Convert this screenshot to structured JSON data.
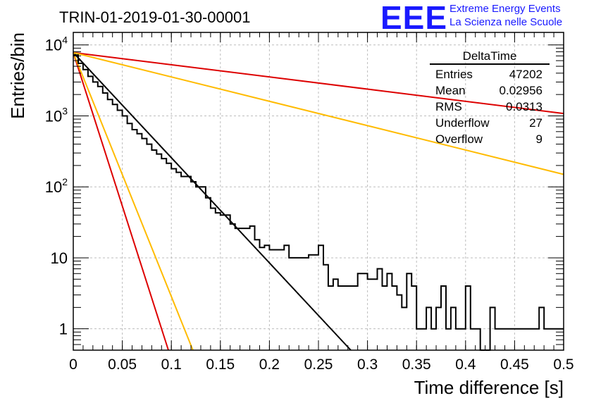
{
  "header": {
    "run_title": "TRIN-01-2019-01-30-00001",
    "logo_text": "EEE",
    "logo_line1": "Extreme Energy Events",
    "logo_line2": "La Scienza nelle Scuole",
    "logo_color": "#1a1aff"
  },
  "stats_box": {
    "title": "DeltaTime",
    "rows": [
      {
        "label": "Entries",
        "value": "47202"
      },
      {
        "label": "Mean",
        "value": "0.02956"
      },
      {
        "label": "RMS",
        "value": "0.0313"
      },
      {
        "label": "Underflow",
        "value": "27"
      },
      {
        "label": "Overflow",
        "value": "9"
      }
    ]
  },
  "chart_data": {
    "type": "line",
    "title": "",
    "xlabel": "Time difference [s]",
    "ylabel": "Entries/bin",
    "xlim": [
      0,
      0.5
    ],
    "ylim": [
      0.5,
      15000
    ],
    "y_scale": "log",
    "grid": true,
    "x_ticks": [
      "0",
      "0.05",
      "0.1",
      "0.15",
      "0.2",
      "0.25",
      "0.3",
      "0.35",
      "0.4",
      "0.45",
      "0.5"
    ],
    "x_tick_values": [
      0,
      0.05,
      0.1,
      0.15,
      0.2,
      0.25,
      0.3,
      0.35,
      0.4,
      0.45,
      0.5
    ],
    "y_ticks": [
      {
        "value": 10000,
        "base": "10",
        "exp": "4"
      },
      {
        "value": 1000,
        "base": "10",
        "exp": "3"
      },
      {
        "value": 100,
        "base": "10",
        "exp": "2"
      },
      {
        "value": 10,
        "base": "10",
        "exp": ""
      },
      {
        "value": 1,
        "base": "1",
        "exp": ""
      }
    ],
    "histogram": {
      "bin_width": 0.005,
      "color": "#000000",
      "counts": [
        7200,
        5500,
        4500,
        3600,
        3000,
        2600,
        2100,
        1700,
        1450,
        1200,
        1000,
        780,
        640,
        560,
        480,
        400,
        330,
        290,
        250,
        215,
        180,
        160,
        140,
        140,
        118,
        100,
        100,
        70,
        50,
        43,
        40,
        40,
        30,
        26,
        26,
        26,
        28,
        18,
        14,
        15,
        13,
        13,
        13,
        15,
        10,
        10,
        10,
        10,
        11,
        11,
        15,
        8,
        4,
        5,
        4,
        4,
        4,
        4,
        6,
        6,
        5,
        5,
        7,
        4,
        6,
        4,
        3,
        2,
        6,
        4,
        1,
        1,
        2,
        1,
        2,
        4,
        1,
        2,
        1,
        1,
        4,
        1,
        1,
        0.5,
        0.5,
        2,
        1,
        1,
        1,
        1,
        1,
        1,
        1,
        1,
        1,
        2,
        1,
        1,
        1,
        1
      ]
    },
    "series": [
      {
        "color": "#000000",
        "x": [
          0,
          0.283
        ],
        "y": [
          7800,
          0.5
        ]
      },
      {
        "color": "#dd0000",
        "x": [
          0,
          0.5
        ],
        "y": [
          7800,
          1080
        ]
      },
      {
        "color": "#ffbb00",
        "x": [
          0,
          0.5
        ],
        "y": [
          7800,
          150
        ]
      },
      {
        "color": "#dd0000",
        "x": [
          0,
          0.097
        ],
        "y": [
          7800,
          0.5
        ]
      },
      {
        "color": "#ffbb00",
        "x": [
          0,
          0.122
        ],
        "y": [
          7800,
          0.5
        ]
      }
    ]
  }
}
